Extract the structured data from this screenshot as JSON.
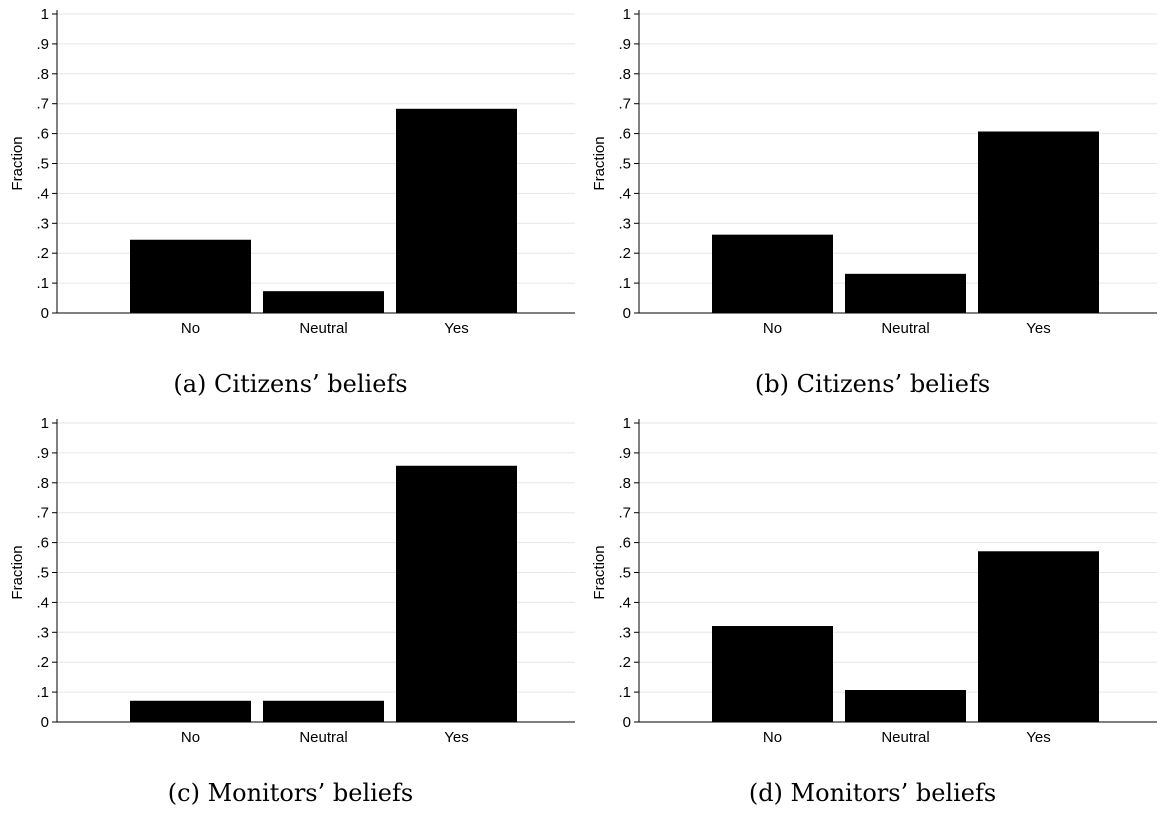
{
  "chart_data": [
    {
      "type": "bar",
      "caption": "(a) Citizens’ beliefs",
      "ylabel": "Fraction",
      "categories": [
        "No",
        "Neutral",
        "Yes"
      ],
      "values": [
        0.245,
        0.073,
        0.683
      ],
      "ylim": [
        0,
        1
      ],
      "yticks": [
        "0",
        ".1",
        ".2",
        ".3",
        ".4",
        ".5",
        ".6",
        ".7",
        ".8",
        ".9",
        "1"
      ],
      "grid": true,
      "bar_color": "#000000"
    },
    {
      "type": "bar",
      "caption": "(b) Citizens’ beliefs",
      "ylabel": "Fraction",
      "categories": [
        "No",
        "Neutral",
        "Yes"
      ],
      "values": [
        0.262,
        0.131,
        0.607
      ],
      "ylim": [
        0,
        1
      ],
      "yticks": [
        "0",
        ".1",
        ".2",
        ".3",
        ".4",
        ".5",
        ".6",
        ".7",
        ".8",
        ".9",
        "1"
      ],
      "grid": true,
      "bar_color": "#000000"
    },
    {
      "type": "bar",
      "caption": "(c) Monitors’ beliefs",
      "ylabel": "Fraction",
      "categories": [
        "No",
        "Neutral",
        "Yes"
      ],
      "values": [
        0.071,
        0.071,
        0.857
      ],
      "ylim": [
        0,
        1
      ],
      "yticks": [
        "0",
        ".1",
        ".2",
        ".3",
        ".4",
        ".5",
        ".6",
        ".7",
        ".8",
        ".9",
        "1"
      ],
      "grid": true,
      "bar_color": "#000000"
    },
    {
      "type": "bar",
      "caption": "(d) Monitors’ beliefs",
      "ylabel": "Fraction",
      "categories": [
        "No",
        "Neutral",
        "Yes"
      ],
      "values": [
        0.321,
        0.107,
        0.571
      ],
      "ylim": [
        0,
        1
      ],
      "yticks": [
        "0",
        ".1",
        ".2",
        ".3",
        ".4",
        ".5",
        ".6",
        ".7",
        ".8",
        ".9",
        "1"
      ],
      "grid": true,
      "bar_color": "#000000"
    }
  ]
}
